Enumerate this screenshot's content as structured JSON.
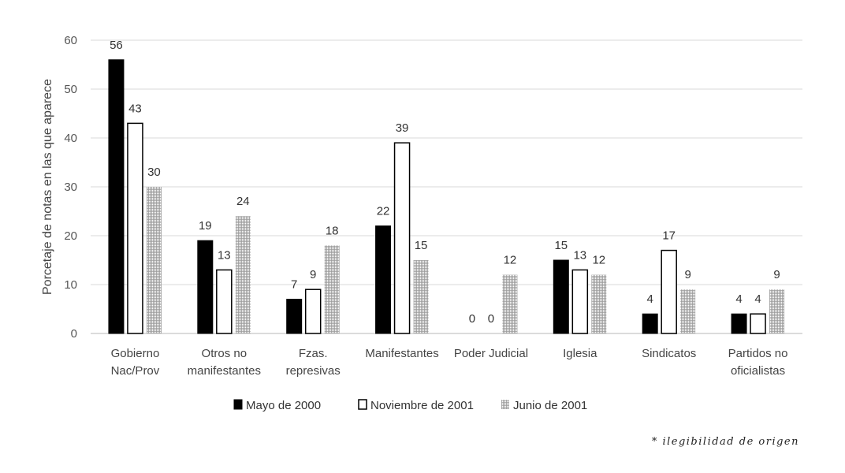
{
  "chart_data": {
    "type": "bar",
    "ylabel": "Porcetaje de notas en las que aparece",
    "ylim": [
      0,
      60
    ],
    "yticks": [
      0,
      10,
      20,
      30,
      40,
      50,
      60
    ],
    "grid": true,
    "legend_position": "bottom",
    "categories": [
      [
        "Gobierno",
        "Nac/Prov"
      ],
      [
        "Otros no",
        "manifestantes"
      ],
      [
        "Fzas.",
        "represivas"
      ],
      [
        "Manifestantes"
      ],
      [
        "Poder Judicial"
      ],
      [
        "Iglesia"
      ],
      [
        "Sindicatos"
      ],
      [
        "Partidos no",
        "oficialistas"
      ]
    ],
    "series": [
      {
        "name": "Mayo de 2000",
        "style": "solid",
        "color": "#000000",
        "values": [
          56,
          19,
          7,
          22,
          0,
          15,
          4,
          4
        ]
      },
      {
        "name": "Noviembre de 2001",
        "style": "outline",
        "color": "#ffffff",
        "values": [
          43,
          13,
          9,
          39,
          0,
          13,
          17,
          4
        ]
      },
      {
        "name": "Junio de 2001",
        "style": "hatched",
        "color": "#b0b0b0",
        "values": [
          30,
          24,
          18,
          15,
          12,
          12,
          9,
          9
        ]
      }
    ]
  },
  "footnote": "* ilegibilidad de origen"
}
